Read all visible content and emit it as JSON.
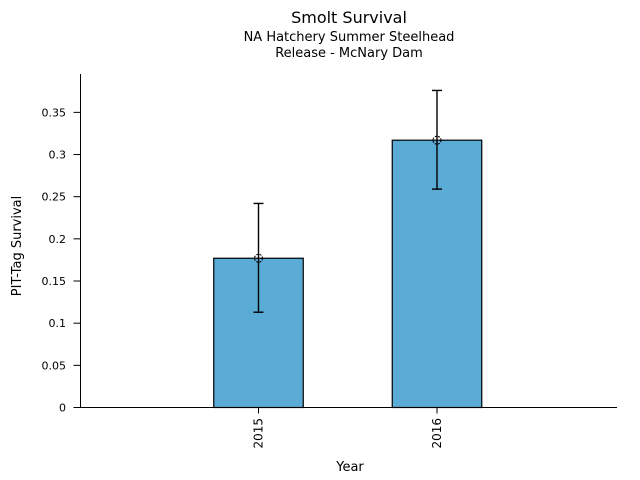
{
  "chart_data": {
    "type": "bar",
    "title": "Smolt Survival",
    "subtitle_lines": [
      "NA Hatchery Summer Steelhead",
      "Release - McNary Dam"
    ],
    "xlabel": "Year",
    "ylabel": "PIT-Tag Survival",
    "categories": [
      "2015",
      "2016"
    ],
    "values": [
      0.177,
      0.317
    ],
    "error_lower": [
      0.113,
      0.259
    ],
    "error_upper": [
      0.242,
      0.376
    ],
    "yticks": [
      0,
      0.05,
      0.1,
      0.15,
      0.2,
      0.25,
      0.3,
      0.35
    ],
    "ytick_labels": [
      "0",
      "0.05",
      "0.1",
      "0.15",
      "0.2",
      "0.25",
      "0.3",
      "0.35"
    ],
    "ylim": [
      0,
      0.3955
    ],
    "grid": false,
    "legend": "none",
    "marker": "open-circle",
    "bar_fill_color": "#5BABD7",
    "bar_edge_color": "#000000",
    "axis_color": "#000000",
    "text_color": "#000000",
    "background_color": "#FFFFFF"
  }
}
